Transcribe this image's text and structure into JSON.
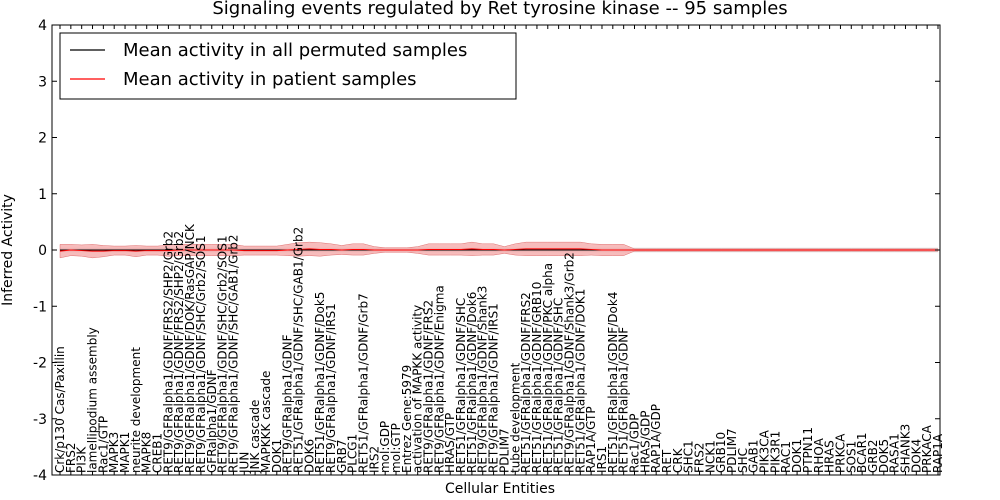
{
  "chart_data": {
    "type": "line",
    "title": "Signaling events regulated by Ret tyrosine kinase -- 95 samples",
    "xlabel": "Cellular Entities",
    "ylabel": "Inferred Activity",
    "ylim": [
      -4,
      4
    ],
    "yticks": [
      "-4",
      "-3",
      "-2",
      "-1",
      "0",
      "1",
      "2",
      "3",
      "4"
    ],
    "legend_position": "top-left",
    "colors": {
      "permuted": "#000000",
      "patient": "#ff0000",
      "band_patient": "#f4a6a6",
      "band_permuted": "#c8c8c8"
    },
    "categories": [
      "Crk/p130 Cas/Paxillin",
      "FRS2",
      "PI3K",
      "lamellipodium assembly",
      "Rac1/GTP",
      "MAPK3",
      "MAPK1",
      "neurite development",
      "MAPK8",
      "CREB1",
      "RET9/GFRalpha1/GDNF/FRS2/SHP2/Grb2",
      "RET9/GFRalpha1/GDNF/FRS2/SHP2/Grb2",
      "RET9/GFRalpha1/GDNF/DOK/RasGAP/NCK",
      "RET9/GFRalpha1/GDNF/SHC/Grb2/SOS1",
      "GFRalpha1/GDNF",
      "RET9/GFRalpha1/GDNF/SHC/Grb2/SOS1",
      "RET9/GFRalpha1/GDNF/SHC/GAB1/Grb2",
      "JUN",
      "JNK cascade",
      "MAPKKK cascade",
      "DOK1",
      "RET9/GFRalpha1/GDNF",
      "RET51/GFRalpha1/GDNF/SHC/GAB1/Grb2",
      "DOK6",
      "RET51/GFRalpha1/GDNF/Dok5",
      "RET9/GFRalpha1/GDNF/IRS1",
      "GRB7",
      "PLCG1",
      "RET51/GFRalpha1/GDNF/Grb7",
      "IRS2",
      "mol:GDP",
      "mol:GTP",
      "Entrez Gene:5979",
      "activation of MAPKK activity",
      "RET9/GFRalpha1/GDNF/FRS2",
      "RET9/GFRalpha1/GDNF/Enigma",
      "HRAS/GTP",
      "RET51/GFRalpha1/GDNF/SHC",
      "RET51/GFRalpha1/GDNF/Dok6",
      "RET9/GFRalpha1/GDNF/Shank3",
      "RET9/GFRalpha1/GDNF/IRS1",
      "PDLIM7",
      "tube development",
      "RET51/GFRalpha1/GDNF/FRS2",
      "RET51/GFRalpha1/GDNF/GRB10",
      "RET51/GFRalpha1/GDNF/PKC alpha",
      "RET51/GFRalpha1/GDNF/SHC",
      "RET9/GFRalpha1/GDNF/Shank3/Grb2",
      "RET51/GFRalpha1/GDNF/DOK1",
      "RAP1A/GTP",
      "IRS1",
      "RET51/GFRalpha1/GDNF/Dok4",
      "RET51/GFRalpha1/GDNF",
      "Rac1/GDP",
      "HRAS/GDP",
      "RAP1A/GDP",
      "RET",
      "CRK",
      "SHC1",
      "FRS2",
      "NCK1",
      "GRB10",
      "PDLIM7",
      "SHC",
      "GAB1",
      "PIK3CA",
      "PIK3R1",
      "RAC1",
      "DOK1",
      "PTPN11",
      "RHOA",
      "HRAS",
      "PRKCA",
      "SOS1",
      "BCAR1",
      "GRB2",
      "DOK5",
      "RASA1",
      "SHANK3",
      "DOK4",
      "PRKACA",
      "RAP1A"
    ],
    "series": [
      {
        "name": "Mean activity in all permuted samples",
        "color": "#000000",
        "values": [
          0.0,
          0.0,
          0.0,
          0.0,
          0.0,
          0.0,
          0.0,
          0.0,
          0.0,
          0.0,
          0.0,
          0.0,
          0.0,
          0.0,
          0.0,
          0.0,
          0.0,
          0.0,
          0.0,
          0.0,
          0.0,
          0.0,
          0.0,
          0.0,
          0.0,
          0.0,
          0.0,
          0.0,
          0.0,
          0.0,
          0.0,
          0.0,
          0.0,
          0.0,
          0.0,
          0.0,
          0.0,
          0.0,
          0.0,
          0.0,
          0.0,
          0.0,
          0.0,
          0.0,
          0.0,
          0.0,
          0.0,
          0.0,
          0.0,
          0.0,
          0.0,
          0.0,
          0.0,
          0.0,
          0.0,
          0.0,
          0.0,
          0.0,
          0.0,
          0.0,
          0.0,
          0.0,
          0.0,
          0.0,
          0.0,
          0.0,
          0.0,
          0.0,
          0.0,
          0.0,
          0.0,
          0.0,
          0.0,
          0.0,
          0.0,
          0.0,
          0.0,
          0.0,
          0.0,
          0.0,
          0.0,
          0.0
        ]
      },
      {
        "name": "Mean activity in patient samples",
        "color": "#ff0000",
        "values": [
          -0.02,
          0.0,
          -0.01,
          -0.02,
          -0.02,
          -0.01,
          -0.01,
          -0.02,
          -0.01,
          -0.01,
          -0.01,
          0.0,
          0.0,
          0.0,
          0.0,
          0.0,
          0.0,
          -0.01,
          -0.01,
          -0.01,
          -0.01,
          0.0,
          0.01,
          0.02,
          0.01,
          0.01,
          0.0,
          0.01,
          0.01,
          0.0,
          0.0,
          0.0,
          0.0,
          0.0,
          0.01,
          0.01,
          0.01,
          0.01,
          0.02,
          0.01,
          0.01,
          0.0,
          0.01,
          0.02,
          0.02,
          0.02,
          0.02,
          0.02,
          0.02,
          0.01,
          0.0,
          0.0,
          0.0,
          0.0,
          0.0,
          0.0,
          0.0,
          0.0,
          0.0,
          0.0,
          0.0,
          0.0,
          0.0,
          0.0,
          0.0,
          0.0,
          0.0,
          0.0,
          0.0,
          0.0,
          0.0,
          0.0,
          0.0,
          0.0,
          0.0,
          0.0,
          0.0,
          0.0,
          0.0,
          0.0,
          0.0,
          0.0
        ]
      }
    ],
    "patient_band_halfwidth": [
      0.12,
      0.1,
      0.1,
      0.12,
      0.1,
      0.08,
      0.08,
      0.1,
      0.08,
      0.08,
      0.1,
      0.1,
      0.1,
      0.1,
      0.1,
      0.1,
      0.1,
      0.08,
      0.08,
      0.08,
      0.08,
      0.1,
      0.12,
      0.12,
      0.12,
      0.1,
      0.08,
      0.1,
      0.1,
      0.06,
      0.04,
      0.04,
      0.04,
      0.06,
      0.1,
      0.1,
      0.1,
      0.1,
      0.12,
      0.1,
      0.1,
      0.06,
      0.1,
      0.12,
      0.12,
      0.12,
      0.12,
      0.12,
      0.12,
      0.1,
      0.1,
      0.1,
      0.1,
      0.02,
      0.02,
      0.02,
      0.02,
      0.02,
      0.02,
      0.02,
      0.02,
      0.02,
      0.02,
      0.02,
      0.02,
      0.02,
      0.02,
      0.02,
      0.02,
      0.02,
      0.02,
      0.02,
      0.02,
      0.02,
      0.02,
      0.02,
      0.02,
      0.02,
      0.02,
      0.02,
      0.02,
      0.02
    ],
    "permuted_band_halfwidth": 0.04
  }
}
